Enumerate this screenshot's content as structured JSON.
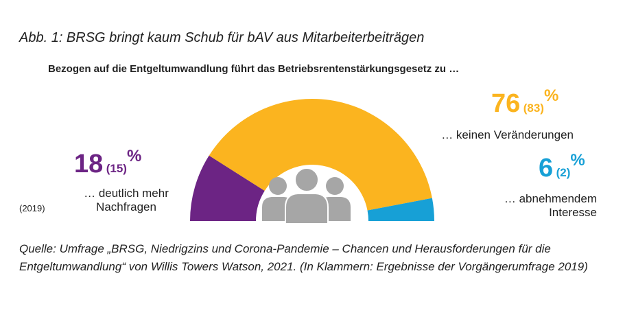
{
  "caption": "Abb. 1: BRSG bringt kaum Schub für bAV aus Mitarbeiterbeiträgen",
  "chart_data": {
    "type": "pie",
    "title": "Bezogen auf die Entgeltumwandlung führt das Betriebsrentenstärkungsgesetz zu …",
    "unit": "%",
    "slices": [
      {
        "value": 18,
        "previous": "(15)",
        "value_label": "18",
        "label_line1": "… deutlich mehr",
        "label_line2": "Nachfragen",
        "color": "#6c2484"
      },
      {
        "value": 76,
        "previous": "(83)",
        "value_label": "76",
        "label_line1": "… keinen Veränderungen",
        "label_line2": "",
        "color": "#fbb41f"
      },
      {
        "value": 6,
        "previous": "(2)",
        "value_label": "6",
        "label_line1": "… abnehmendem",
        "label_line2": "Interesse",
        "color": "#17a0d6"
      }
    ],
    "previous_year_note": "(2019)",
    "icon": "people-group-icon"
  },
  "source": "Quelle: Umfrage „BRSG, Niedrigzins und Corona-Pandemie – Chancen und Herausforderungen für die Entgeltumwandlung“ von Willis Towers Watson, 2021. (In Klammern: Ergebnisse der Vorgängerumfrage 2019)"
}
